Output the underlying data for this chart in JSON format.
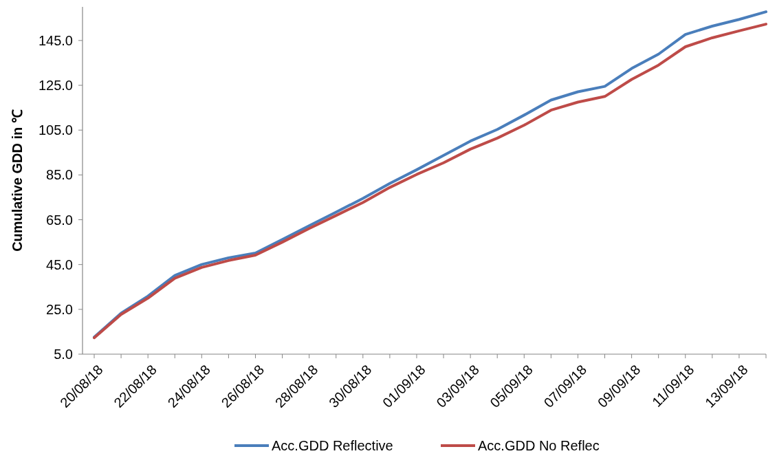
{
  "chart_data": {
    "type": "line",
    "ylabel": "Cumulative GDD in ℃",
    "categories": [
      "20/08/18",
      null,
      "22/08/18",
      null,
      "24/08/18",
      null,
      "26/08/18",
      null,
      "28/08/18",
      null,
      "30/08/18",
      null,
      "01/09/18",
      null,
      "03/09/18",
      null,
      "05/09/18",
      null,
      "07/09/18",
      null,
      "09/09/18",
      null,
      "11/09/18",
      null,
      "13/09/18",
      null
    ],
    "series": [
      {
        "name": "Acc.GDD Reflective",
        "color": "#4a7ebb",
        "values": [
          12.6,
          23.3,
          30.9,
          40.1,
          45.0,
          48.0,
          50.1,
          56.2,
          62.3,
          68.4,
          74.5,
          81.2,
          87.3,
          93.7,
          100.1,
          105.3,
          111.7,
          118.4,
          122.1,
          124.5,
          132.5,
          138.9,
          147.7,
          151.4,
          154.4,
          157.8
        ]
      },
      {
        "name": "Acc.GDD No Reflec",
        "color": "#be4b48",
        "values": [
          12.3,
          22.7,
          30.0,
          38.9,
          43.7,
          46.8,
          49.2,
          55.0,
          61.1,
          66.9,
          72.7,
          79.4,
          85.2,
          90.4,
          96.5,
          101.4,
          107.2,
          113.9,
          117.5,
          120.0,
          127.6,
          134.0,
          142.2,
          146.2,
          149.3,
          152.3
        ]
      }
    ],
    "ylim": [
      5,
      160
    ],
    "yticks": [
      {
        "value": 5,
        "label": "5.0"
      },
      {
        "value": 25,
        "label": "25.0"
      },
      {
        "value": 45,
        "label": "45.0"
      },
      {
        "value": 65,
        "label": "65.0"
      },
      {
        "value": 85,
        "label": "85.0"
      },
      {
        "value": 105,
        "label": "105.0"
      },
      {
        "value": 125,
        "label": "125.0"
      },
      {
        "value": 145,
        "label": "145.0"
      }
    ],
    "grid": false,
    "legend": "bottom",
    "marker": "none",
    "line_style": "solid"
  }
}
